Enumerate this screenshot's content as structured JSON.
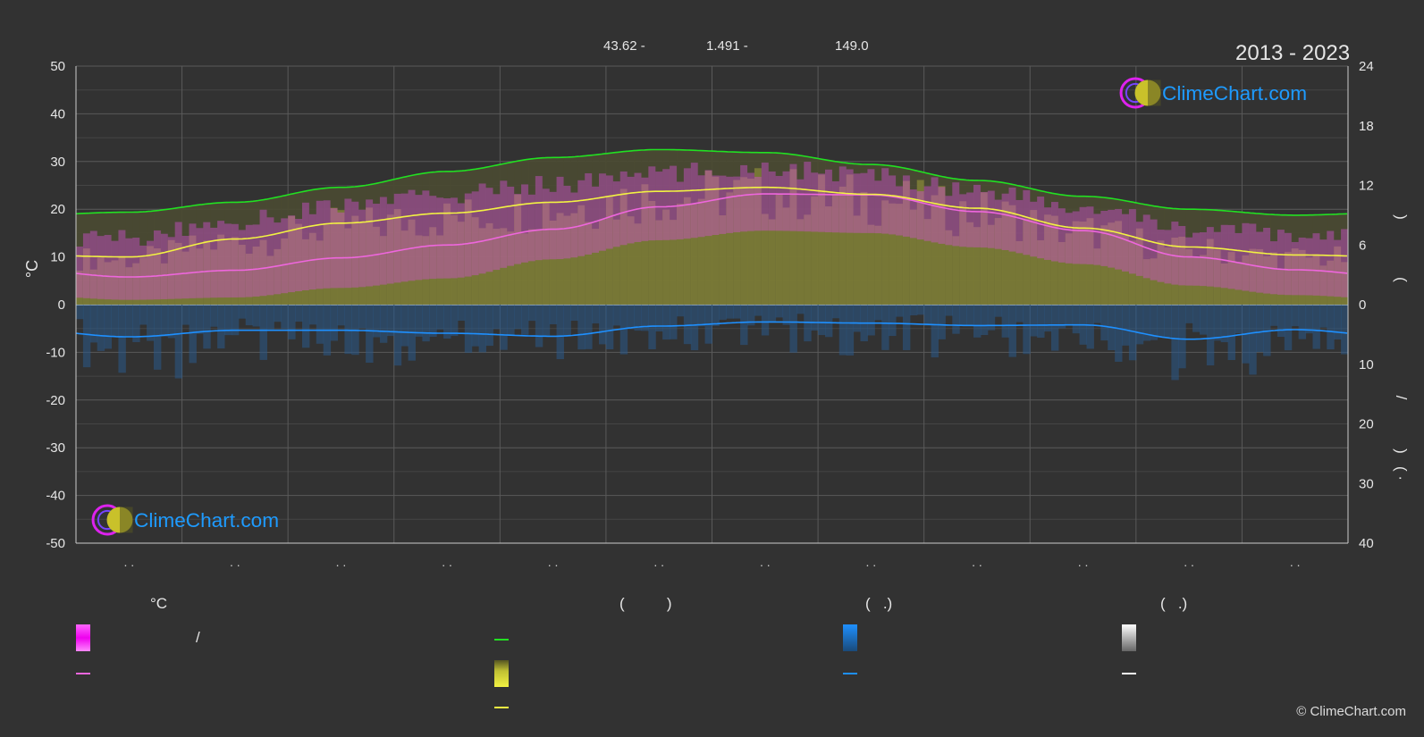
{
  "header": {
    "coords": [
      "43.62 -",
      "1.491 -",
      "149.0"
    ],
    "years": "2013 - 2023"
  },
  "brand": {
    "name": "ClimeChart.com",
    "copyright": "© ClimeChart.com"
  },
  "colors": {
    "background": "#323232",
    "daylight": "#22e022",
    "sunshine": "#f2f242",
    "temp_line": "#ee66dd",
    "temp_band": "#ee22ee",
    "rain": "#1e90ff",
    "snow": "#ffffff",
    "brand": "#1e9bff"
  },
  "legend": {
    "temp_header": "°C",
    "sun_header": "(          )",
    "rain_header": "(   .)",
    "snow_header": "(   .)",
    "temp_range_sep": "/"
  },
  "chart_data": {
    "type": "area",
    "months": [
      ".  .",
      ".  .",
      ".  .",
      ".  .",
      ".  .",
      ".  .",
      ".  .",
      ".  .",
      ".  .",
      ".  .",
      ".  .",
      ".  ."
    ],
    "left_axis": {
      "label": "°C",
      "ticks": [
        50,
        40,
        30,
        20,
        10,
        0,
        -10,
        -20,
        -30,
        -40,
        -50
      ],
      "ylim": [
        -50,
        50
      ]
    },
    "right_axis_top": {
      "ticks": [
        24,
        18,
        12,
        6,
        0
      ],
      "ylim": [
        0,
        24
      ],
      "label_glyphs": [
        ")",
        "("
      ]
    },
    "right_axis_bottom": {
      "ticks": [
        0,
        10,
        20,
        30,
        40
      ],
      "ylim": [
        0,
        40
      ],
      "label_glyphs": [
        "/",
        ")",
        "(  ·"
      ]
    },
    "grid": true,
    "series": [
      {
        "key": "daylight",
        "axis": "hours",
        "values": [
          9.3,
          10.3,
          11.8,
          13.4,
          14.8,
          15.6,
          15.3,
          14.1,
          12.5,
          10.9,
          9.6,
          9.0
        ]
      },
      {
        "key": "sunshine",
        "axis": "hours",
        "values": [
          4.8,
          6.6,
          8.2,
          9.2,
          10.3,
          11.4,
          11.8,
          11.1,
          9.7,
          7.7,
          5.8,
          5.0
        ]
      },
      {
        "key": "temp_mean",
        "axis": "celsius",
        "values": [
          5.8,
          7.2,
          9.8,
          12.5,
          15.8,
          20.5,
          23.2,
          23.0,
          19.5,
          15.5,
          10.0,
          7.3
        ]
      },
      {
        "key": "temp_max",
        "axis": "celsius",
        "values": [
          9.9,
          13.5,
          16.8,
          19.0,
          21.2,
          23.5,
          24.6,
          23.0,
          20.2,
          16.0,
          12.0,
          10.5
        ]
      },
      {
        "key": "temp_min",
        "axis": "celsius",
        "values": [
          1.0,
          1.5,
          3.5,
          5.5,
          9.5,
          13.5,
          15.5,
          15.0,
          12.0,
          8.5,
          4.0,
          2.0
        ]
      },
      {
        "key": "rain",
        "axis": "mm",
        "values": [
          5.4,
          4.3,
          4.3,
          4.8,
          5.3,
          3.6,
          2.9,
          3.1,
          3.5,
          3.4,
          5.8,
          4.2
        ]
      }
    ]
  }
}
